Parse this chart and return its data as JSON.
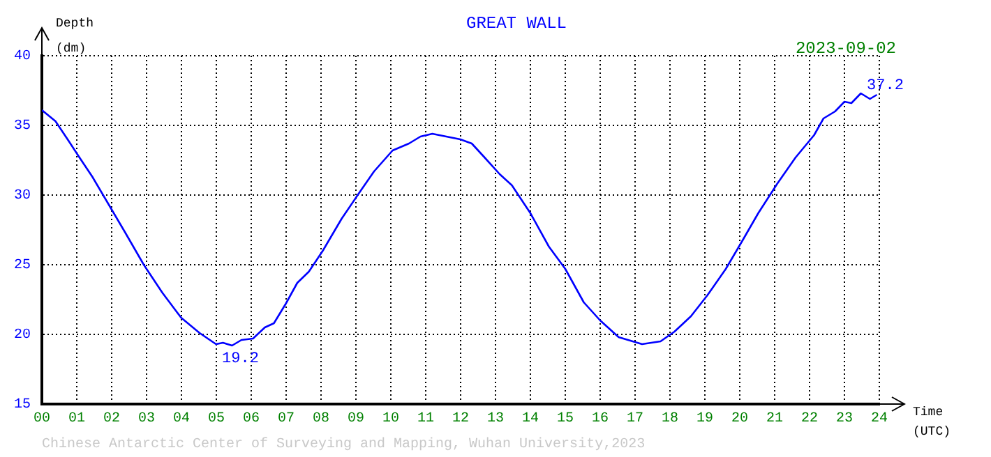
{
  "chart_data": {
    "type": "line",
    "title": "GREAT WALL",
    "subtitle": "2023-09-02",
    "xlabel": "Time (UTC)",
    "ylabel": "Depth (dm)",
    "annotations": [
      {
        "text": "19.2",
        "x": 5.45,
        "y": 19.2
      },
      {
        "text": "37.2",
        "x": 23.93,
        "y": 37.2
      },
      "Chinese Antarctic Center of Surveying and Mapping, Wuhan University,2023"
    ],
    "xlim": [
      0,
      24
    ],
    "ylim": [
      15,
      40
    ],
    "xticks": [
      {
        "value": 0,
        "label": "00"
      },
      {
        "value": 1,
        "label": "01"
      },
      {
        "value": 2,
        "label": "02"
      },
      {
        "value": 3,
        "label": "03"
      },
      {
        "value": 4,
        "label": "04"
      },
      {
        "value": 5,
        "label": "05"
      },
      {
        "value": 6,
        "label": "06"
      },
      {
        "value": 7,
        "label": "07"
      },
      {
        "value": 8,
        "label": "08"
      },
      {
        "value": 9,
        "label": "09"
      },
      {
        "value": 10,
        "label": "10"
      },
      {
        "value": 11,
        "label": "11"
      },
      {
        "value": 12,
        "label": "12"
      },
      {
        "value": 13,
        "label": "13"
      },
      {
        "value": 14,
        "label": "14"
      },
      {
        "value": 15,
        "label": "15"
      },
      {
        "value": 16,
        "label": "16"
      },
      {
        "value": 17,
        "label": "17"
      },
      {
        "value": 18,
        "label": "18"
      },
      {
        "value": 19,
        "label": "19"
      },
      {
        "value": 20,
        "label": "20"
      },
      {
        "value": 21,
        "label": "21"
      },
      {
        "value": 22,
        "label": "22"
      },
      {
        "value": 23,
        "label": "23"
      },
      {
        "value": 24,
        "label": "24"
      }
    ],
    "yticks": [
      15,
      20,
      25,
      30,
      35,
      40
    ],
    "grid": true,
    "legend": false,
    "marker": "none",
    "line_style": "solid",
    "series": [
      {
        "color": "#0000ff",
        "x": [
          0,
          0.39,
          0.79,
          1.05,
          1.45,
          1.92,
          2.39,
          2.92,
          3.45,
          3.99,
          4.52,
          4.99,
          5.19,
          5.45,
          5.72,
          6.05,
          6.39,
          6.65,
          6.99,
          7.32,
          7.65,
          8.05,
          8.59,
          9.05,
          9.52,
          10.05,
          10.52,
          10.85,
          11.19,
          11.59,
          11.99,
          12.32,
          12.65,
          13.12,
          13.47,
          14.0,
          14.53,
          15.0,
          15.53,
          16.0,
          16.53,
          17.2,
          17.73,
          18.13,
          18.6,
          19.07,
          19.6,
          20.07,
          20.53,
          21.07,
          21.6,
          22.13,
          22.4,
          22.73,
          23.0,
          23.2,
          23.47,
          23.73,
          23.93
        ],
        "values": [
          36.1,
          35.3,
          33.8,
          32.8,
          31.3,
          29.3,
          27.3,
          25.0,
          23.0,
          21.2,
          20.1,
          19.3,
          19.4,
          19.2,
          19.6,
          19.7,
          20.5,
          20.8,
          22.2,
          23.7,
          24.5,
          26.0,
          28.3,
          30.0,
          31.7,
          33.2,
          33.7,
          34.2,
          34.4,
          34.2,
          34.0,
          33.7,
          32.8,
          31.5,
          30.7,
          28.7,
          26.3,
          24.7,
          22.3,
          21.0,
          19.8,
          19.3,
          19.5,
          20.2,
          21.3,
          22.8,
          24.7,
          26.7,
          28.7,
          30.8,
          32.7,
          34.3,
          35.5,
          36.0,
          36.7,
          36.6,
          37.3,
          36.9,
          37.2
        ]
      }
    ]
  }
}
